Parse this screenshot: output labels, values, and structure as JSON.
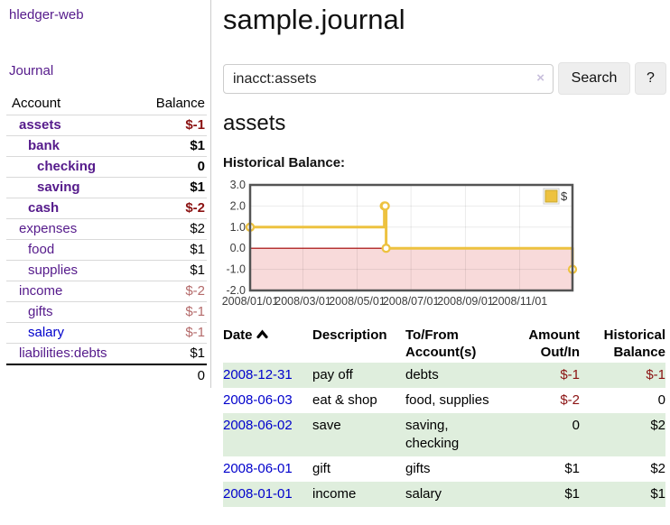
{
  "app": {
    "brand": "hledger-web"
  },
  "colors": {
    "link_purple": "#551a8b",
    "link_blue": "#0000cc",
    "negative_strong": "#8b1212",
    "negative_soft": "#b46a6a",
    "stripe_green": "#dfeedd"
  },
  "sidebar": {
    "journal_label": "Journal",
    "table": {
      "headers": {
        "account": "Account",
        "balance": "Balance"
      },
      "rows": [
        {
          "account": "assets",
          "balance": "$-1",
          "depth": 1,
          "bold": true,
          "negative": true,
          "blue": false
        },
        {
          "account": "bank",
          "balance": "$1",
          "depth": 2,
          "bold": true,
          "negative": false,
          "blue": false
        },
        {
          "account": "checking",
          "balance": "0",
          "depth": 3,
          "bold": true,
          "negative": false,
          "blue": false
        },
        {
          "account": "saving",
          "balance": "$1",
          "depth": 3,
          "bold": true,
          "negative": false,
          "blue": false
        },
        {
          "account": "cash",
          "balance": "$-2",
          "depth": 2,
          "bold": true,
          "negative": true,
          "blue": false
        },
        {
          "account": "expenses",
          "balance": "$2",
          "depth": 1,
          "bold": false,
          "negative": false,
          "blue": false
        },
        {
          "account": "food",
          "balance": "$1",
          "depth": 2,
          "bold": false,
          "negative": false,
          "blue": false
        },
        {
          "account": "supplies",
          "balance": "$1",
          "depth": 2,
          "bold": false,
          "negative": false,
          "blue": false
        },
        {
          "account": "income",
          "balance": "$-2",
          "depth": 1,
          "bold": false,
          "negative": true,
          "blue": false
        },
        {
          "account": "gifts",
          "balance": "$-1",
          "depth": 2,
          "bold": false,
          "negative": true,
          "blue": false
        },
        {
          "account": "salary",
          "balance": "$-1",
          "depth": 2,
          "bold": false,
          "negative": true,
          "blue": true
        },
        {
          "account": "liabilities:debts",
          "balance": "$1",
          "depth": 1,
          "bold": false,
          "negative": false,
          "blue": false
        }
      ],
      "total": "0"
    }
  },
  "header": {
    "title": "sample.journal"
  },
  "search": {
    "value": "inacct:assets",
    "clear_icon": "×",
    "button": "Search",
    "help_button": "?"
  },
  "account_page": {
    "heading": "assets"
  },
  "chart_data": {
    "type": "line",
    "step": true,
    "title": "Historical Balance:",
    "legend": [
      {
        "label": "$",
        "color": "#edc240"
      }
    ],
    "legend_position": "top-right",
    "x_range": [
      "2008-01-01",
      "2008-12-31"
    ],
    "ylim": [
      -2,
      3
    ],
    "yticks": [
      {
        "label": "3.0",
        "v": 3
      },
      {
        "label": "2.0",
        "v": 2
      },
      {
        "label": "1.0",
        "v": 1
      },
      {
        "label": "0.0",
        "v": 0
      },
      {
        "label": "-1.0",
        "v": -1
      },
      {
        "label": "-2.0",
        "v": -2
      }
    ],
    "xticks": [
      {
        "label": "2008/01/01",
        "f": 0.0
      },
      {
        "label": "2008/03/01",
        "f": 0.164
      },
      {
        "label": "2008/05/01",
        "f": 0.332
      },
      {
        "label": "2008/07/01",
        "f": 0.499
      },
      {
        "label": "2008/09/01",
        "f": 0.668
      },
      {
        "label": "2008/11/01",
        "f": 0.836
      }
    ],
    "points": [
      {
        "date": "2008-01-01",
        "f": 0.0,
        "y": 1
      },
      {
        "date": "2008-06-01",
        "f": 0.4164,
        "y": 2
      },
      {
        "date": "2008-06-02",
        "f": 0.4191,
        "y": 2
      },
      {
        "date": "2008-06-03",
        "f": 0.4219,
        "y": 0
      },
      {
        "date": "2008-12-31",
        "f": 1.0,
        "y": -1
      }
    ],
    "colors": {
      "series": "#edc240",
      "marker_fill": "#ffffff",
      "negative_region": "#f8dada",
      "zero_line": "#a40000",
      "grid": "rgba(0,0,0,0.08)",
      "border": "#545454",
      "tick_text": "#3c3c3c"
    }
  },
  "register": {
    "headers": [
      {
        "label": "Date",
        "sorted": "ascending"
      },
      {
        "label": "Description"
      },
      {
        "label": "To/From Account(s)"
      },
      {
        "label": "Amount Out/In"
      },
      {
        "label": "Historical Balance"
      }
    ],
    "rows": [
      {
        "date": "2008-12-31",
        "description": "pay off",
        "accounts": "debts",
        "amount": "$-1",
        "balance": "$-1",
        "amount_negative": true,
        "balance_negative": true,
        "shaded": true
      },
      {
        "date": "2008-06-03",
        "description": "eat & shop",
        "accounts": "food, supplies",
        "amount": "$-2",
        "balance": "0",
        "amount_negative": true,
        "balance_negative": false,
        "shaded": false
      },
      {
        "date": "2008-06-02",
        "description": "save",
        "accounts": "saving, checking",
        "amount": "0",
        "balance": "$2",
        "amount_negative": false,
        "balance_negative": false,
        "shaded": true
      },
      {
        "date": "2008-06-01",
        "description": "gift",
        "accounts": "gifts",
        "amount": "$1",
        "balance": "$2",
        "amount_negative": false,
        "balance_negative": false,
        "shaded": false
      },
      {
        "date": "2008-01-01",
        "description": "income",
        "accounts": "salary",
        "amount": "$1",
        "balance": "$1",
        "amount_negative": false,
        "balance_negative": false,
        "shaded": true
      }
    ]
  }
}
